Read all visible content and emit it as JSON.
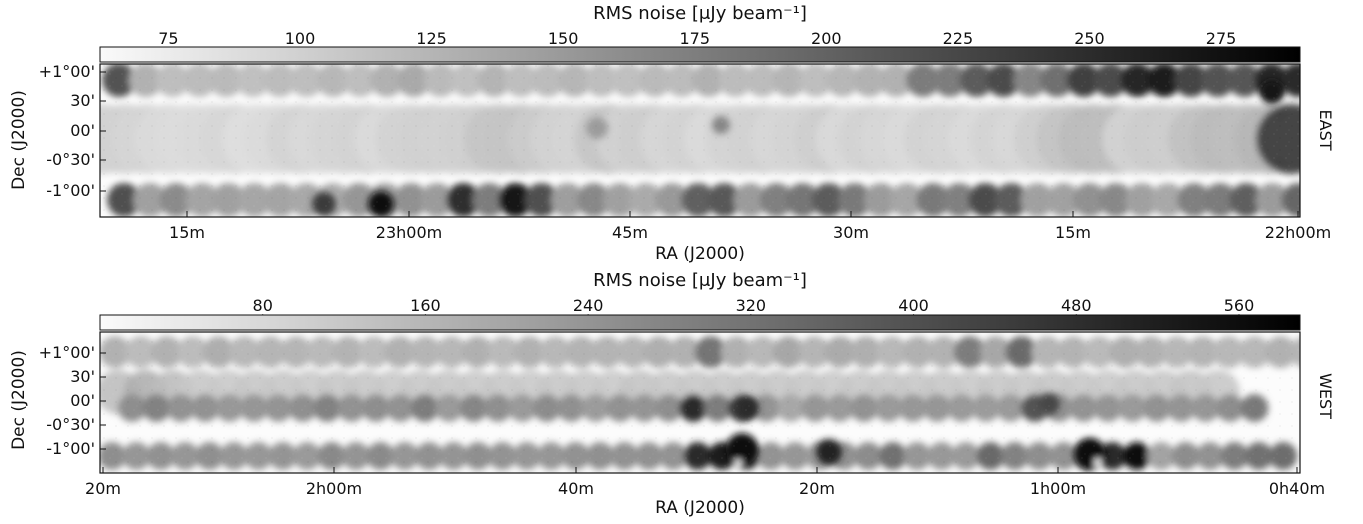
{
  "chart_data": [
    {
      "type": "heatmap",
      "title": "",
      "field_label": "EAST",
      "colorbar": {
        "label": "RMS noise [μJy beam⁻¹]",
        "ticks": [
          75,
          100,
          125,
          150,
          175,
          200,
          225,
          250,
          275
        ],
        "range": [
          62,
          290
        ],
        "colormap": "white-to-black"
      },
      "xlabel": "RA (J2000)",
      "ylabel": "Dec (J2000)",
      "x_tick_labels": [
        "15m",
        "23h00m",
        "45m",
        "30m",
        "15m",
        "22h00m"
      ],
      "y_tick_labels": [
        "+1°00'",
        "30'",
        "00'",
        "-0°30'",
        "-1°00'"
      ],
      "rows": [
        {
          "name": "top",
          "values": [
            218,
            130,
            118,
            120,
            122,
            116,
            120,
            118,
            124,
            118,
            130,
            137,
            122,
            116,
            127,
            118,
            120,
            125,
            118,
            116,
            122,
            120,
            130,
            120,
            120,
            126,
            118,
            124,
            129,
            130,
            180,
            178,
            210,
            225,
            170,
            190,
            235,
            225,
            260,
            270,
            230,
            218,
            215,
            260,
            255,
            270,
            252
          ]
        },
        {
          "name": "middle",
          "values": [
            100,
            98,
            96,
            92,
            90,
            92,
            95,
            88,
            92,
            97,
            93,
            96,
            98,
            92,
            98,
            101,
            98,
            102,
            110,
            112,
            105,
            98,
            97,
            110,
            100,
            103,
            95,
            98,
            92,
            97,
            100,
            95,
            97,
            103,
            92,
            98,
            95,
            92,
            98,
            96,
            92,
            97,
            94,
            103,
            112,
            120,
            118,
            98,
            105,
            103,
            115,
            120,
            118,
            125,
            240,
            230
          ]
        },
        {
          "name": "bottom",
          "values": [
            220,
            146,
            165,
            142,
            146,
            140,
            142,
            138,
            135,
            155,
            148,
            160,
            150,
            252,
            178,
            276,
            220,
            148,
            168,
            146,
            136,
            152,
            205,
            212,
            150,
            176,
            185,
            210,
            182,
            150,
            140,
            182,
            176,
            225,
            210,
            146,
            145,
            160,
            168,
            146,
            138,
            176,
            180,
            206,
            150,
            200,
            232
          ]
        }
      ],
      "highlights": [
        {
          "ra": "23h05m",
          "dec_level": "-1°00'",
          "value": 280
        },
        {
          "ra": "23h10m",
          "dec_level": "-1°00'",
          "value": 240
        },
        {
          "ra": "22h53m",
          "dec_level": "00'",
          "value": 150
        },
        {
          "ra": "22h45m",
          "dec_level": "00'",
          "value": 170
        },
        {
          "ra": "22h05m",
          "dec_level": "+1°00'",
          "value": 275
        }
      ]
    },
    {
      "type": "heatmap",
      "title": "",
      "field_label": "WEST",
      "colorbar": {
        "label": "RMS noise [μJy beam⁻¹]",
        "ticks": [
          80,
          160,
          240,
          320,
          400,
          480,
          560
        ],
        "range": [
          0,
          590
        ],
        "colormap": "white-to-black"
      },
      "xlabel": "RA (J2000)",
      "ylabel": "Dec (J2000)",
      "x_tick_labels": [
        "20m",
        "2h00m",
        "40m",
        "20m",
        "1h00m",
        "0h40m"
      ],
      "y_tick_labels": [
        "+1°00'",
        "30'",
        "00'",
        "-0°30'",
        "-1°00'"
      ],
      "rows": [
        {
          "name": "top",
          "values": [
            175,
            150,
            175,
            150,
            182,
            160,
            165,
            165,
            155,
            170,
            150,
            175,
            165,
            162,
            178,
            155,
            175,
            160,
            170,
            168,
            165,
            180,
            175,
            320,
            178,
            160,
            200,
            165,
            190,
            180,
            160,
            176,
            174,
            300,
            200,
            345,
            165,
            170,
            155,
            180,
            175,
            162,
            168,
            160,
            158,
            175,
            165
          ]
        },
        {
          "name": "middle",
          "values": [
            145,
            180,
            150,
            120,
            118,
            122,
            120,
            118,
            124,
            126,
            118,
            120,
            122,
            119,
            121,
            118,
            125,
            120,
            118,
            130,
            120,
            126,
            120,
            122,
            125,
            122,
            118,
            120,
            126,
            120,
            122,
            118,
            124,
            120,
            128,
            120,
            118,
            122,
            121,
            130,
            120
          ]
        },
        {
          "name": "lower",
          "values": [
            260,
            290,
            250,
            250,
            235,
            240,
            245,
            258,
            290,
            250,
            260,
            250,
            300,
            232,
            280,
            258,
            232,
            266,
            255,
            228,
            250,
            245,
            260,
            500,
            300,
            460,
            248,
            200,
            240,
            230,
            250,
            232,
            238,
            240,
            230,
            228,
            230,
            400,
            250,
            248,
            245,
            232,
            250,
            245,
            240,
            262,
            310
          ]
        },
        {
          "name": "bottom",
          "values": [
            260,
            240,
            252,
            240,
            258,
            240,
            238,
            245,
            230,
            272,
            245,
            270,
            240,
            252,
            245,
            258,
            248,
            242,
            240,
            250,
            255,
            250,
            252,
            248,
            500,
            530,
            460,
            248,
            240,
            232,
            252,
            265,
            330,
            240,
            235,
            230,
            350,
            290,
            260,
            250,
            270,
            500,
            570,
            210,
            262,
            250,
            300,
            330,
            340
          ]
        }
      ],
      "highlights": [
        {
          "ra": "1h24m",
          "dec_level": "-1°00'",
          "value": 560
        },
        {
          "ra": "1h02m",
          "dec_level": "-1°00'",
          "value": 585
        },
        {
          "ra": "1h20m",
          "dec_level": "00'",
          "value": 500
        },
        {
          "ra": "0h58m",
          "dec_level": "00'",
          "value": 430
        },
        {
          "ra": "1h16m",
          "dec_level": "-1°00'",
          "value": 520
        }
      ]
    }
  ]
}
